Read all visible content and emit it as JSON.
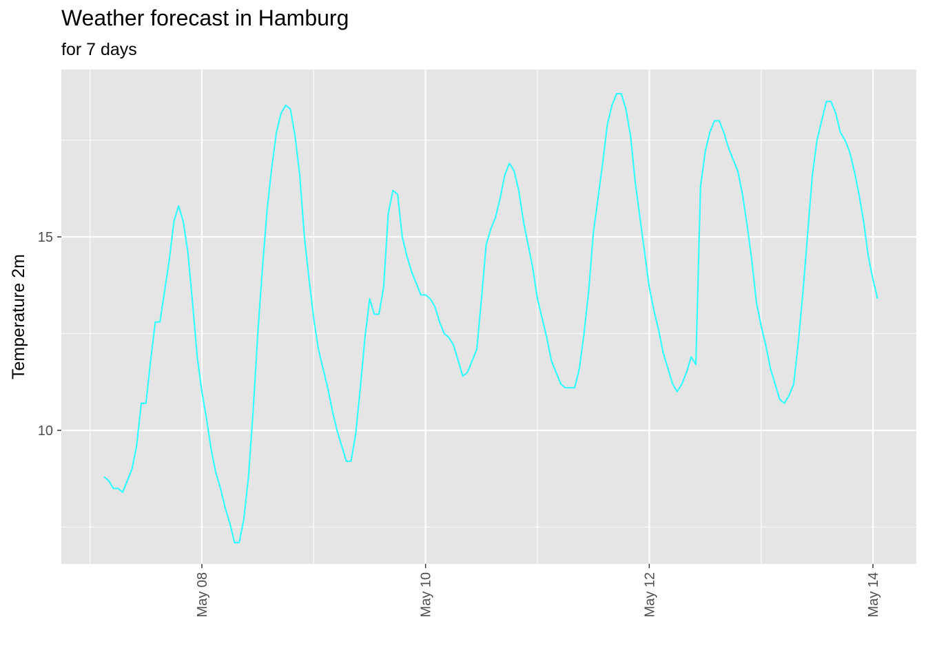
{
  "chart_data": {
    "type": "line",
    "title": "Weather forecast in Hamburg",
    "subtitle": "for 7 days",
    "xlabel": "",
    "ylabel": "Temperature 2m",
    "x_start": "2024-05-07T00:00",
    "x_step_hours": 1,
    "x_ticks": [
      "May 08",
      "May 10",
      "May 12",
      "May 14"
    ],
    "y_ticks": [
      10,
      15
    ],
    "ylim": [
      6.5,
      19.5
    ],
    "grid": true,
    "line_color": "#33FFFF",
    "panel_color": "#E5E5E5",
    "series": [
      {
        "values": [
          8.8,
          8.7,
          8.5,
          8.5,
          8.4,
          8.7,
          9.0,
          9.6,
          10.7,
          10.7,
          11.8,
          12.8,
          12.8,
          13.6,
          14.4,
          15.4,
          15.8,
          15.4,
          14.6,
          13.3,
          11.9,
          11.0,
          10.3,
          9.5,
          8.9,
          8.5,
          8.0,
          7.6,
          7.1,
          7.1,
          7.7,
          8.8,
          10.5,
          12.5,
          14.2,
          15.7,
          16.8,
          17.7,
          18.2,
          18.4,
          18.3,
          17.6,
          16.6,
          15.0,
          13.9,
          12.9,
          12.1,
          11.6,
          11.1,
          10.5,
          10.0,
          9.6,
          9.2,
          9.2,
          9.9,
          11.1,
          12.4,
          13.4,
          13.0,
          13.0,
          13.7,
          15.6,
          16.2,
          16.1,
          15.0,
          14.5,
          14.1,
          13.8,
          13.5,
          13.5,
          13.4,
          13.2,
          12.8,
          12.5,
          12.4,
          12.2,
          11.8,
          11.4,
          11.5,
          11.8,
          12.1,
          13.4,
          14.8,
          15.2,
          15.5,
          16.0,
          16.6,
          16.9,
          16.7,
          16.2,
          15.4,
          14.8,
          14.2,
          13.4,
          12.9,
          12.4,
          11.8,
          11.5,
          11.2,
          11.1,
          11.1,
          11.1,
          11.6,
          12.5,
          13.6,
          15.1,
          16.0,
          16.9,
          17.9,
          18.4,
          18.7,
          18.7,
          18.3,
          17.6,
          16.4,
          15.5,
          14.6,
          13.7,
          13.1,
          12.6,
          12.0,
          11.6,
          11.2,
          11.0,
          11.2,
          11.5,
          11.9,
          11.7,
          16.3,
          17.2,
          17.7,
          18.0,
          18.0,
          17.7,
          17.3,
          17.0,
          16.7,
          16.1,
          15.3,
          14.4,
          13.3,
          12.7,
          12.2,
          11.6,
          11.2,
          10.8,
          10.7,
          10.9,
          11.2,
          12.3,
          13.6,
          15.1,
          16.6,
          17.5,
          18.0,
          18.5,
          18.5,
          18.2,
          17.7,
          17.5,
          17.2,
          16.7,
          16.1,
          15.4,
          14.5,
          13.9,
          13.4
        ]
      }
    ]
  }
}
